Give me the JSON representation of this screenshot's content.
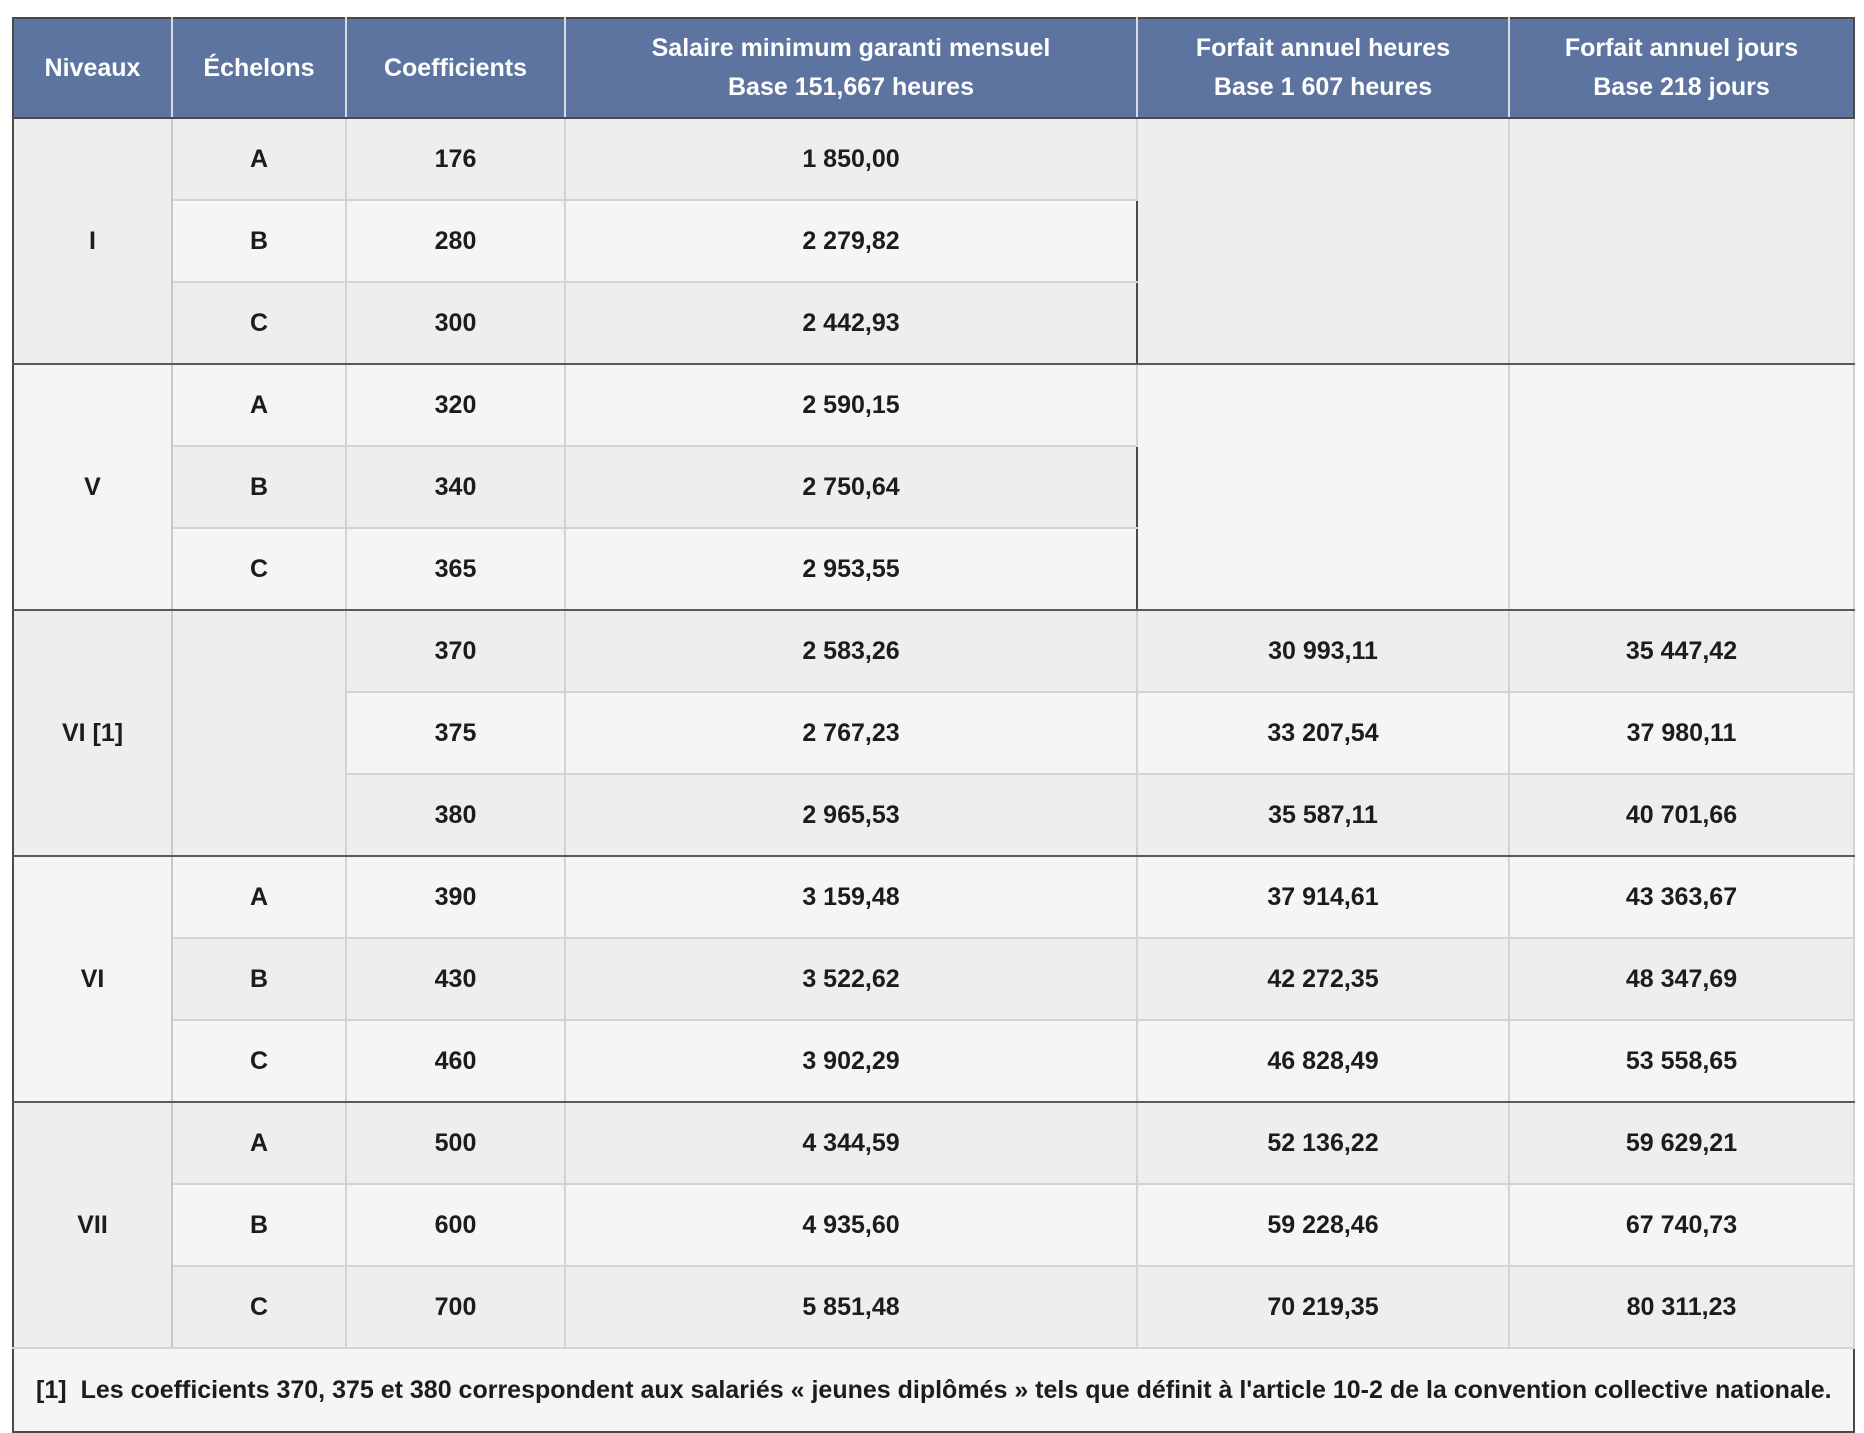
{
  "table": {
    "headers": {
      "niveaux": "Niveaux",
      "echelons": "Échelons",
      "coefficients": "Coefficients",
      "salaire_line1": "Salaire minimum garanti mensuel",
      "salaire_line2": "Base 151,667 heures",
      "heures_line1": "Forfait annuel heures",
      "heures_line2": "Base 1 607 heures",
      "jours_line1": "Forfait annuel jours",
      "jours_line2": "Base 218 jours"
    },
    "groups": [
      {
        "level": "I",
        "rows": [
          {
            "echelon": "A",
            "coef": "176",
            "salaire": "1 850,00"
          },
          {
            "echelon": "B",
            "coef": "280",
            "salaire": "2 279,82"
          },
          {
            "echelon": "C",
            "coef": "300",
            "salaire": "2 442,93"
          }
        ]
      },
      {
        "level": "V",
        "rows": [
          {
            "echelon": "A",
            "coef": "320",
            "salaire": "2 590,15"
          },
          {
            "echelon": "B",
            "coef": "340",
            "salaire": "2 750,64"
          },
          {
            "echelon": "C",
            "coef": "365",
            "salaire": "2 953,55"
          }
        ]
      },
      {
        "level": "VI [1]",
        "rows": [
          {
            "echelon": "",
            "coef": "370",
            "salaire": "2 583,26",
            "heures": "30 993,11",
            "jours": "35 447,42"
          },
          {
            "echelon": "",
            "coef": "375",
            "salaire": "2 767,23",
            "heures": "33 207,54",
            "jours": "37 980,11"
          },
          {
            "echelon": "",
            "coef": "380",
            "salaire": "2 965,53",
            "heures": "35 587,11",
            "jours": "40 701,66"
          }
        ]
      },
      {
        "level": "VI",
        "rows": [
          {
            "echelon": "A",
            "coef": "390",
            "salaire": "3 159,48",
            "heures": "37 914,61",
            "jours": "43 363,67"
          },
          {
            "echelon": "B",
            "coef": "430",
            "salaire": "3 522,62",
            "heures": "42 272,35",
            "jours": "48 347,69"
          },
          {
            "echelon": "C",
            "coef": "460",
            "salaire": "3 902,29",
            "heures": "46 828,49",
            "jours": "53 558,65"
          }
        ]
      },
      {
        "level": "VII",
        "rows": [
          {
            "echelon": "A",
            "coef": "500",
            "salaire": "4 344,59",
            "heures": "52 136,22",
            "jours": "59 629,21"
          },
          {
            "echelon": "B",
            "coef": "600",
            "salaire": "4 935,60",
            "heures": "59 228,46",
            "jours": "67 740,73"
          },
          {
            "echelon": "C",
            "coef": "700",
            "salaire": "5 851,48",
            "heures": "70 219,35",
            "jours": "80 311,23"
          }
        ]
      }
    ],
    "footnote": {
      "marker": "[1]",
      "text": "Les coefficients 370, 375 et 380 correspondent aux salariés « jeunes diplômés » tels que définit à l'article 10-2 de la convention collective nationale."
    }
  }
}
